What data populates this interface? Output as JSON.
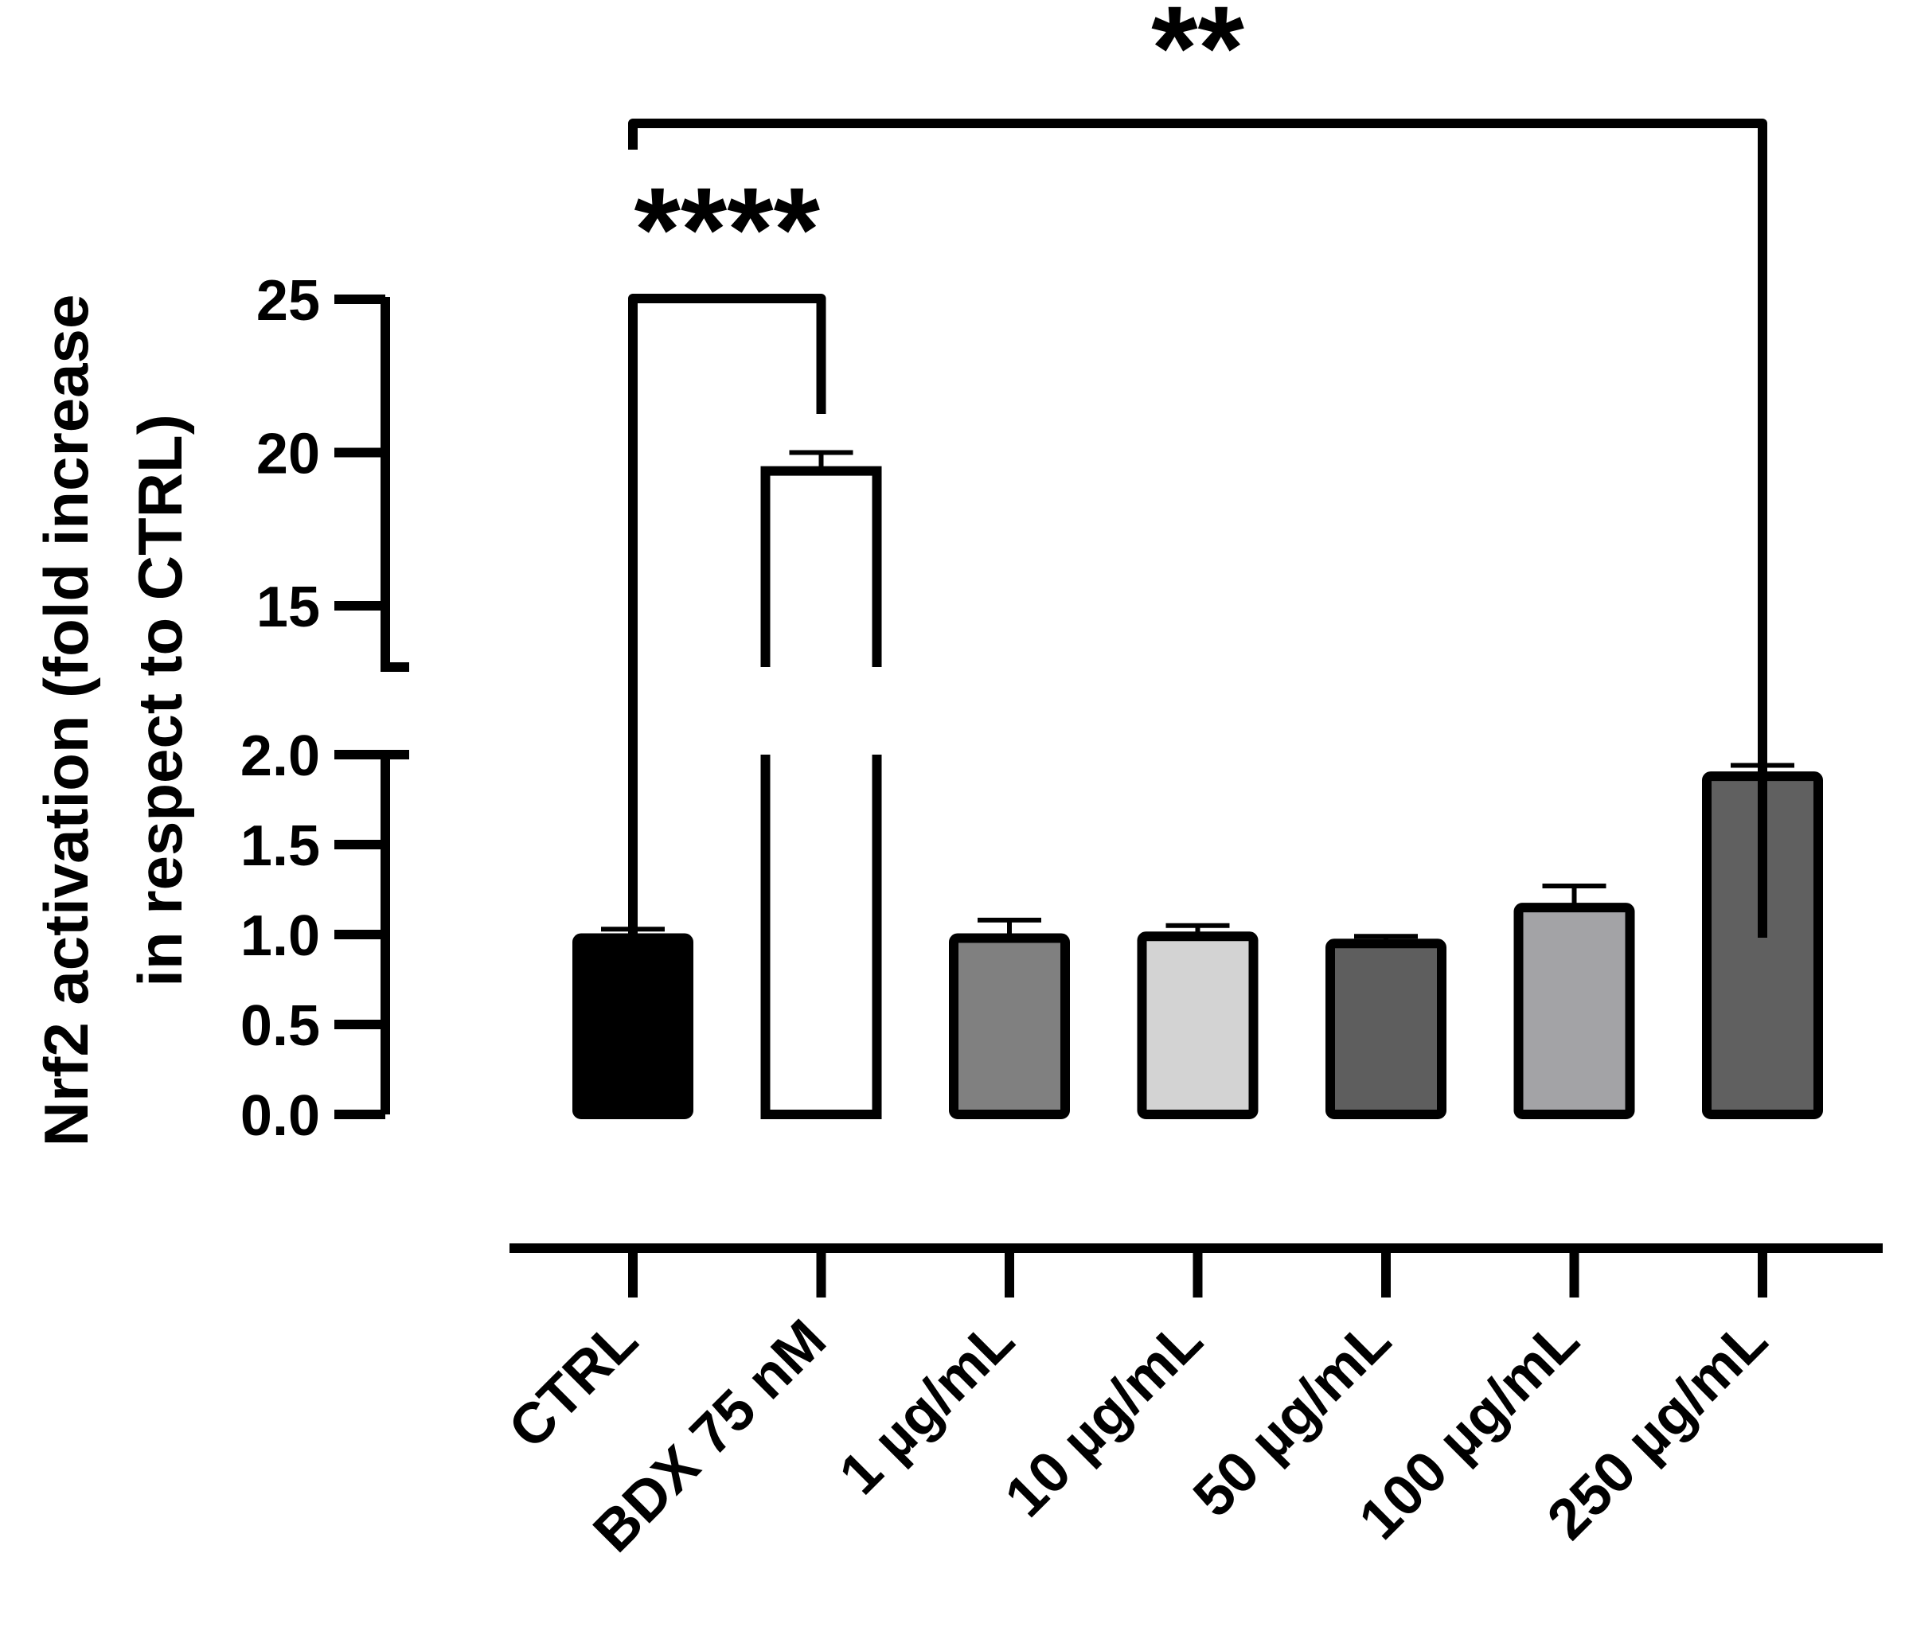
{
  "chart_data": {
    "type": "bar",
    "title": "",
    "xlabel": "",
    "ylabel_lines": [
      "Nrf2 activation (fold increase",
      "in respect to CTRL)"
    ],
    "categories": [
      "CTRL",
      "BDX 75 nM",
      "1 µg/mL",
      "10 µg/mL",
      "50 µg/mL",
      "100 µg/mL",
      "250 µg/mL"
    ],
    "values": [
      0.98,
      19.4,
      0.98,
      0.99,
      0.95,
      1.15,
      1.88
    ],
    "errors": [
      0.05,
      0.6,
      0.1,
      0.06,
      0.04,
      0.12,
      0.06
    ],
    "colors": [
      "#000000",
      "#ffffff",
      "#808080",
      "#d3d3d3",
      "#5e5e5e",
      "#a3a3a6",
      "#606060"
    ],
    "y_axis_break": true,
    "y_segments": [
      {
        "range": [
          0,
          2.0
        ],
        "ticks": [
          0.0,
          0.5,
          1.0,
          1.5,
          2.0
        ],
        "tick_labels": [
          "0.0",
          "0.5",
          "1.0",
          "1.5",
          "2.0"
        ]
      },
      {
        "range": [
          13,
          25
        ],
        "ticks": [
          15,
          20,
          25
        ],
        "tick_labels": [
          "15",
          "20",
          "25"
        ]
      }
    ],
    "grid": false,
    "legend": "none",
    "significance": [
      {
        "from": "CTRL",
        "to": "BDX 75 nM",
        "label": "****"
      },
      {
        "from": "CTRL",
        "to": "250 µg/mL",
        "label": "**"
      }
    ]
  }
}
